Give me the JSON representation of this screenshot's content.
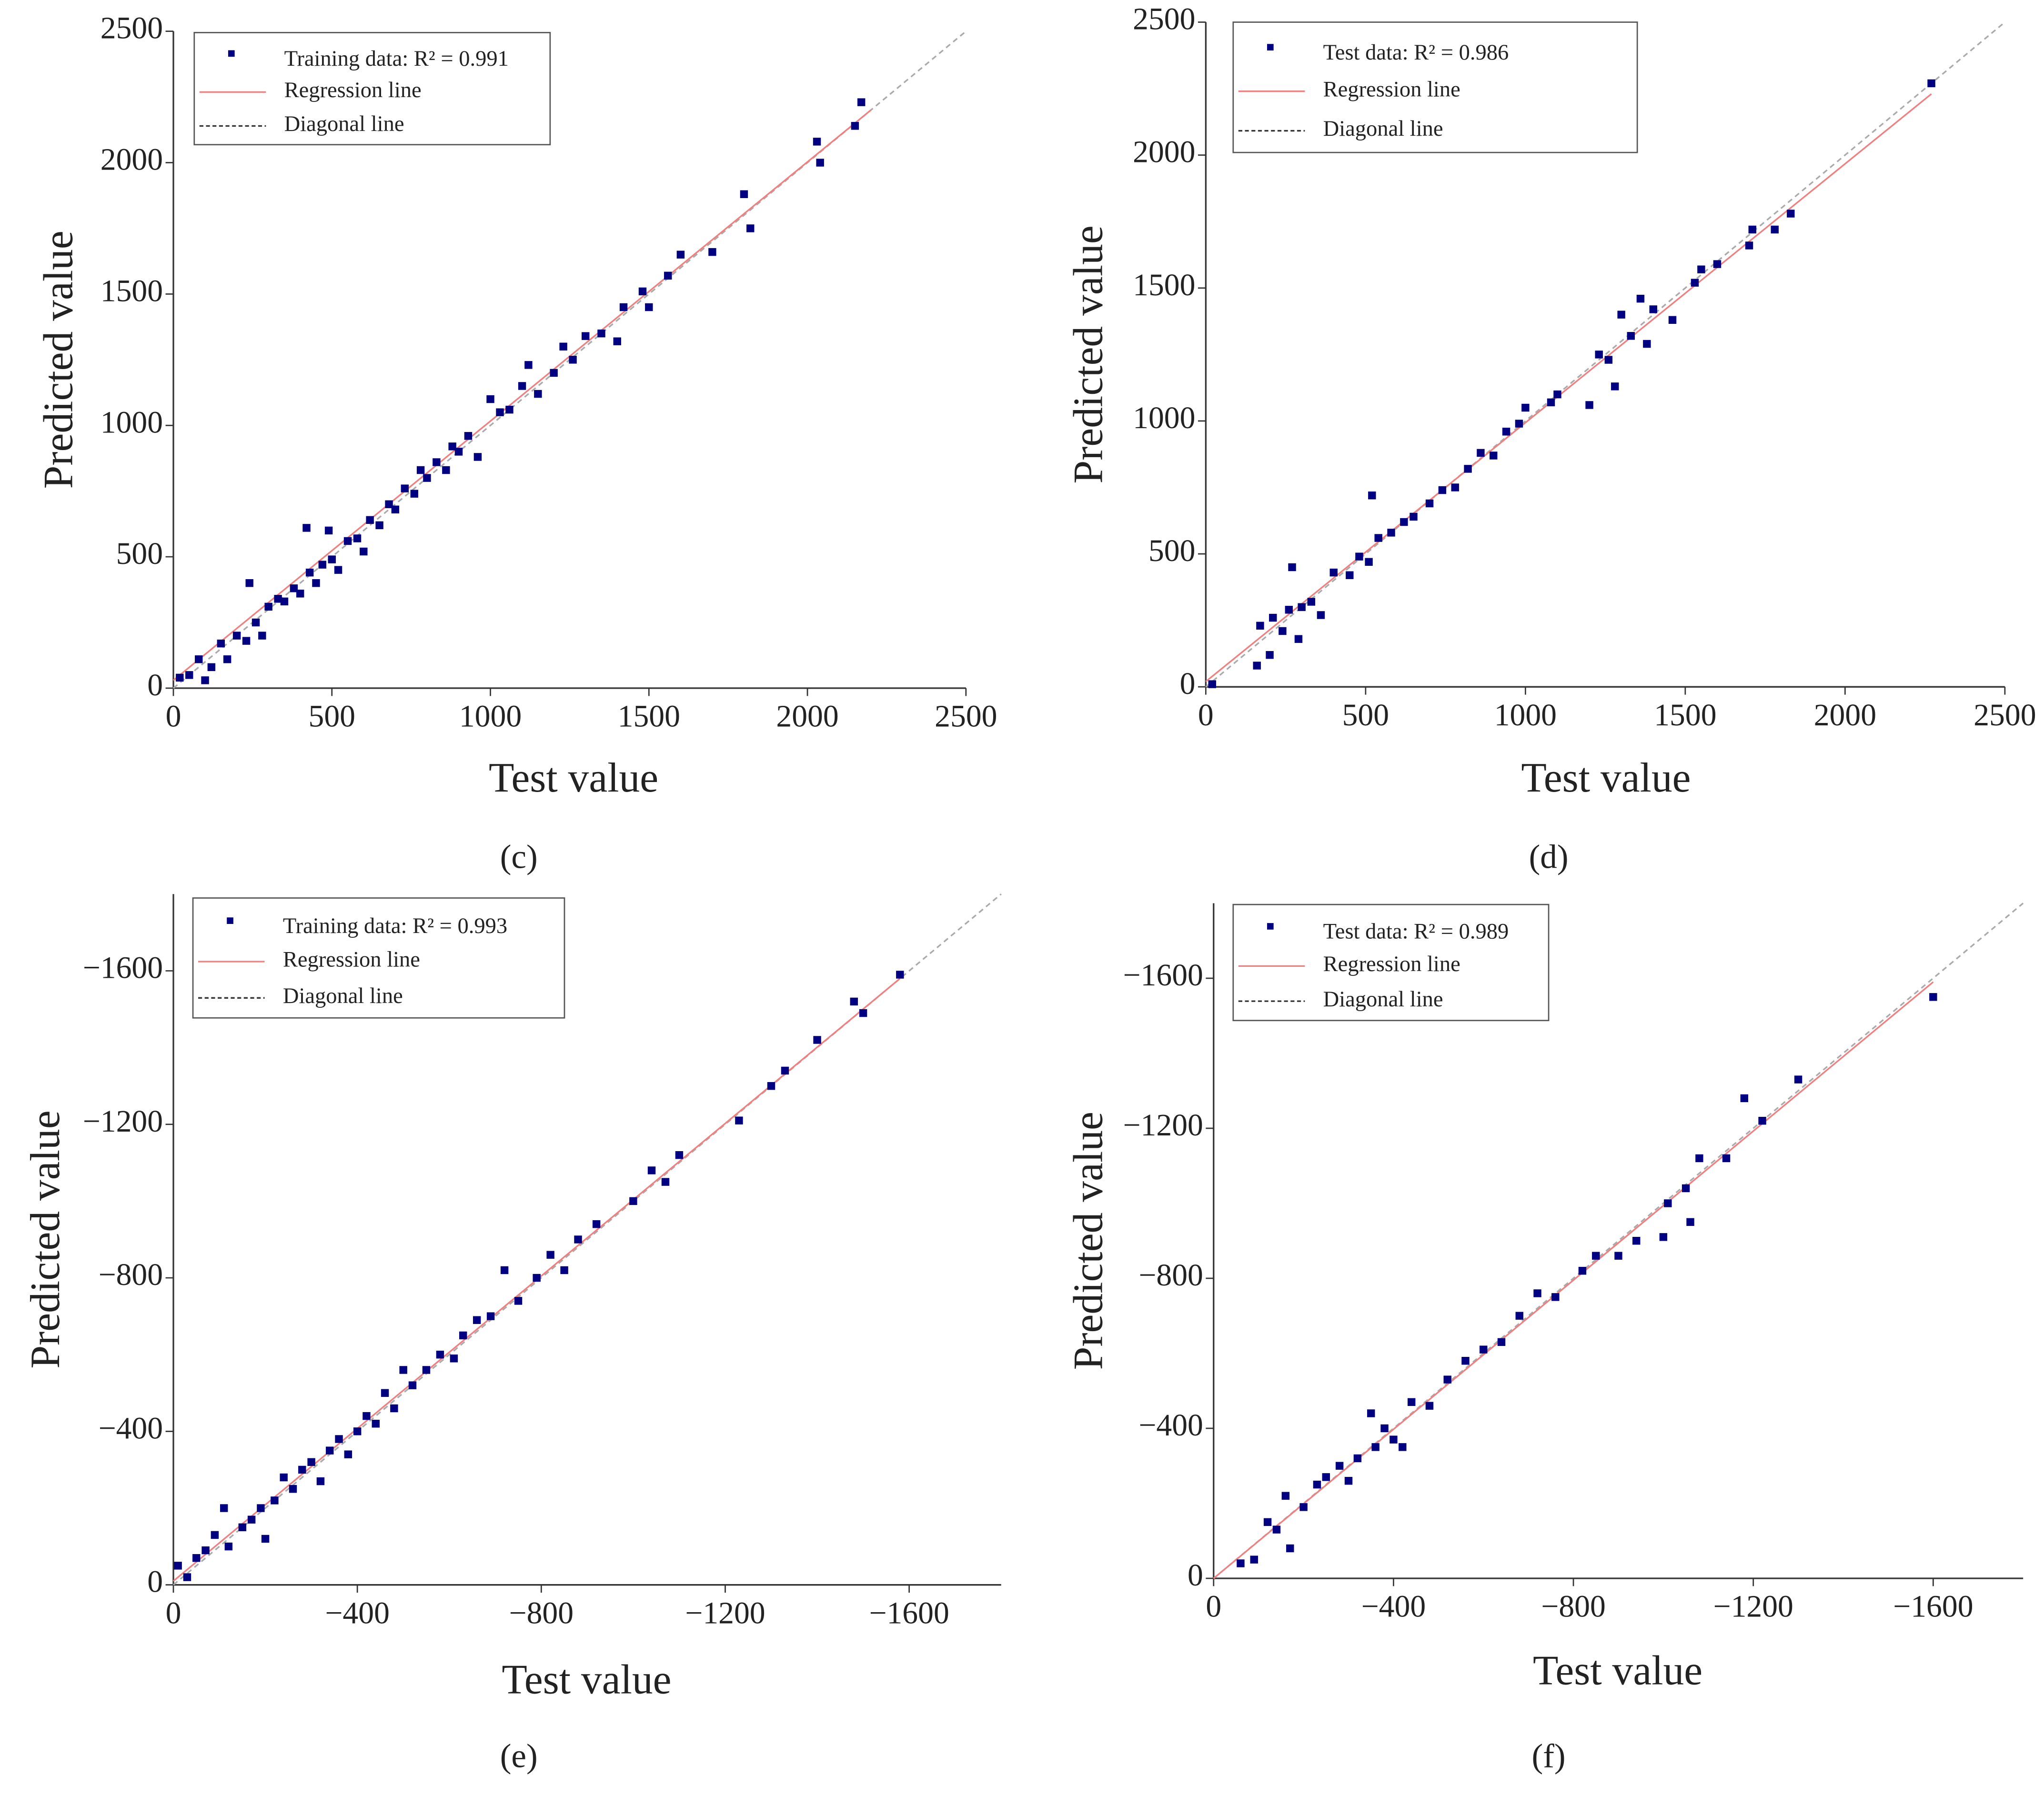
{
  "chart_data": [
    {
      "type": "scatter",
      "label": "(c)",
      "xlabel": "Test value",
      "ylabel": "Predicted value",
      "xlim": [
        0,
        2500
      ],
      "ylim": [
        0,
        2500
      ],
      "xticks": [
        0,
        500,
        1000,
        1500,
        2000,
        2500
      ],
      "yticks": [
        0,
        500,
        1000,
        1500,
        2000,
        2500
      ],
      "series": [
        {
          "name": "Training data: R² = 0.991",
          "color": "#000080",
          "x": [
            20,
            50,
            80,
            100,
            120,
            150,
            170,
            200,
            230,
            240,
            260,
            280,
            300,
            330,
            350,
            380,
            400,
            420,
            430,
            450,
            470,
            490,
            500,
            520,
            550,
            580,
            600,
            620,
            650,
            680,
            700,
            730,
            760,
            780,
            800,
            830,
            860,
            880,
            900,
            930,
            960,
            1000,
            1030,
            1060,
            1100,
            1120,
            1150,
            1200,
            1230,
            1260,
            1300,
            1350,
            1400,
            1420,
            1480,
            1500,
            1560,
            1600,
            1700,
            1800,
            1820,
            2030,
            2040,
            2150,
            2170
          ],
          "y": [
            40,
            50,
            110,
            30,
            80,
            170,
            110,
            200,
            180,
            400,
            250,
            200,
            310,
            340,
            330,
            380,
            360,
            610,
            440,
            400,
            470,
            600,
            490,
            450,
            560,
            570,
            520,
            640,
            620,
            700,
            680,
            760,
            740,
            830,
            800,
            860,
            830,
            920,
            900,
            960,
            880,
            1100,
            1050,
            1060,
            1150,
            1230,
            1120,
            1200,
            1300,
            1250,
            1340,
            1350,
            1320,
            1450,
            1510,
            1450,
            1570,
            1650,
            1660,
            1880,
            1750,
            2080,
            2000,
            2140,
            2230
          ]
        }
      ],
      "regression": {
        "name": "Regression line",
        "color": "#f08080",
        "x": [
          0,
          2200
        ],
        "y": [
          30,
          2200
        ]
      },
      "diagonal": {
        "name": "Diagonal line",
        "color": "#aaaaaa",
        "x": [
          0,
          2500
        ],
        "y": [
          0,
          2500
        ]
      }
    },
    {
      "type": "scatter",
      "label": "(d)",
      "xlabel": "Test value",
      "ylabel": "Predicted value",
      "xlim": [
        0,
        2500
      ],
      "ylim": [
        0,
        2500
      ],
      "xticks": [
        0,
        500,
        1000,
        1500,
        2000,
        2500
      ],
      "yticks": [
        0,
        500,
        1000,
        1500,
        2000,
        2500
      ],
      "series": [
        {
          "name": "Test data: R² = 0.986",
          "color": "#000080",
          "x": [
            20,
            160,
            170,
            200,
            210,
            240,
            260,
            270,
            290,
            300,
            330,
            360,
            400,
            450,
            480,
            510,
            520,
            540,
            580,
            620,
            650,
            700,
            740,
            780,
            820,
            860,
            900,
            940,
            980,
            1000,
            1080,
            1100,
            1200,
            1230,
            1260,
            1280,
            1300,
            1330,
            1360,
            1380,
            1400,
            1460,
            1530,
            1550,
            1600,
            1700,
            1710,
            1780,
            1830,
            2270
          ],
          "y": [
            10,
            80,
            230,
            120,
            260,
            210,
            290,
            450,
            180,
            300,
            320,
            270,
            430,
            420,
            490,
            470,
            720,
            560,
            580,
            620,
            640,
            690,
            740,
            750,
            820,
            880,
            870,
            960,
            990,
            1050,
            1070,
            1100,
            1060,
            1250,
            1230,
            1130,
            1400,
            1320,
            1460,
            1290,
            1420,
            1380,
            1520,
            1570,
            1590,
            1660,
            1720,
            1720,
            1780,
            2270
          ]
        }
      ],
      "regression": {
        "name": "Regression line",
        "color": "#f08080",
        "x": [
          0,
          2270
        ],
        "y": [
          20,
          2230
        ]
      },
      "diagonal": {
        "name": "Diagonal line",
        "color": "#aaaaaa",
        "x": [
          0,
          2500
        ],
        "y": [
          0,
          2500
        ]
      }
    },
    {
      "type": "scatter",
      "label": "(e)",
      "xlabel": "Test value",
      "ylabel": "Predicted value",
      "xlim": [
        0,
        -1800
      ],
      "ylim": [
        0,
        -1800
      ],
      "xticks": [
        0,
        {
          "value": -400,
          "label": "−400"
        },
        {
          "value": -800,
          "label": "−800"
        },
        {
          "value": -1200,
          "label": "−1200"
        },
        {
          "value": -1600,
          "label": "−1600"
        }
      ],
      "yticks": [
        0,
        {
          "value": -400,
          "label": "−400"
        },
        {
          "value": -800,
          "label": "−800"
        },
        {
          "value": -1200,
          "label": "−1200"
        },
        {
          "value": -1600,
          "label": "−1600"
        }
      ],
      "series": [
        {
          "name": "Training data: R² = 0.993",
          "color": "#000080",
          "x": [
            -10,
            -30,
            -50,
            -70,
            -90,
            -110,
            -120,
            -150,
            -170,
            -190,
            -200,
            -220,
            -240,
            -260,
            -280,
            -300,
            -320,
            -340,
            -360,
            -380,
            -400,
            -420,
            -440,
            -460,
            -480,
            -500,
            -520,
            -550,
            -580,
            -610,
            -630,
            -660,
            -690,
            -720,
            -750,
            -790,
            -820,
            -850,
            -880,
            -920,
            -1000,
            -1040,
            -1070,
            -1100,
            -1230,
            -1300,
            -1330,
            -1400,
            -1480,
            -1500,
            -1580
          ],
          "y": [
            -50,
            -20,
            -70,
            -90,
            -130,
            -200,
            -100,
            -150,
            -170,
            -200,
            -120,
            -220,
            -280,
            -250,
            -300,
            -320,
            -270,
            -350,
            -380,
            -340,
            -400,
            -440,
            -420,
            -500,
            -460,
            -560,
            -520,
            -560,
            -600,
            -590,
            -650,
            -690,
            -700,
            -820,
            -740,
            -800,
            -860,
            -820,
            -900,
            -940,
            -1000,
            -1080,
            -1050,
            -1120,
            -1210,
            -1300,
            -1340,
            -1420,
            -1520,
            -1490,
            -1590
          ]
        }
      ],
      "regression": {
        "name": "Regression line",
        "color": "#f08080",
        "x": [
          0,
          -1580
        ],
        "y": [
          -10,
          -1580
        ]
      },
      "diagonal": {
        "name": "Diagonal line",
        "color": "#aaaaaa",
        "x": [
          0,
          -1800
        ],
        "y": [
          0,
          -1800
        ]
      }
    },
    {
      "type": "scatter",
      "label": "(f)",
      "xlabel": "Test value",
      "ylabel": "Predicted value",
      "xlim": [
        0,
        -1800
      ],
      "ylim": [
        0,
        -1800
      ],
      "xticks": [
        0,
        {
          "value": -400,
          "label": "−400"
        },
        {
          "value": -800,
          "label": "−800"
        },
        {
          "value": -1200,
          "label": "−1200"
        },
        {
          "value": -1600,
          "label": "−1600"
        }
      ],
      "yticks": [
        0,
        {
          "value": -400,
          "label": "−400"
        },
        {
          "value": -800,
          "label": "−800"
        },
        {
          "value": -1200,
          "label": "−1200"
        },
        {
          "value": -1600,
          "label": "−1600"
        }
      ],
      "series": [
        {
          "name": "Test data: R² = 0.989",
          "color": "#000080",
          "x": [
            -60,
            -90,
            -120,
            -140,
            -160,
            -170,
            -200,
            -230,
            -250,
            -280,
            -300,
            -320,
            -350,
            -360,
            -380,
            -400,
            -420,
            -440,
            -480,
            -520,
            -560,
            -600,
            -640,
            -680,
            -720,
            -760,
            -820,
            -850,
            -900,
            -940,
            -1000,
            -1010,
            -1050,
            -1060,
            -1080,
            -1140,
            -1180,
            -1220,
            -1300,
            -1600
          ],
          "y": [
            -40,
            -50,
            -150,
            -130,
            -220,
            -80,
            -190,
            -250,
            -270,
            -300,
            -260,
            -320,
            -440,
            -350,
            -400,
            -370,
            -350,
            -470,
            -460,
            -530,
            -580,
            -610,
            -630,
            -700,
            -760,
            -750,
            -820,
            -860,
            -860,
            -900,
            -910,
            -1000,
            -1040,
            -950,
            -1120,
            -1120,
            -1280,
            -1220,
            -1330,
            -1550
          ]
        }
      ],
      "regression": {
        "name": "Regression line",
        "color": "#f08080",
        "x": [
          0,
          -1600
        ],
        "y": [
          0,
          -1590
        ]
      },
      "diagonal": {
        "name": "Diagonal line",
        "color": "#aaaaaa",
        "x": [
          0,
          -1800
        ],
        "y": [
          0,
          -1800
        ]
      }
    }
  ]
}
